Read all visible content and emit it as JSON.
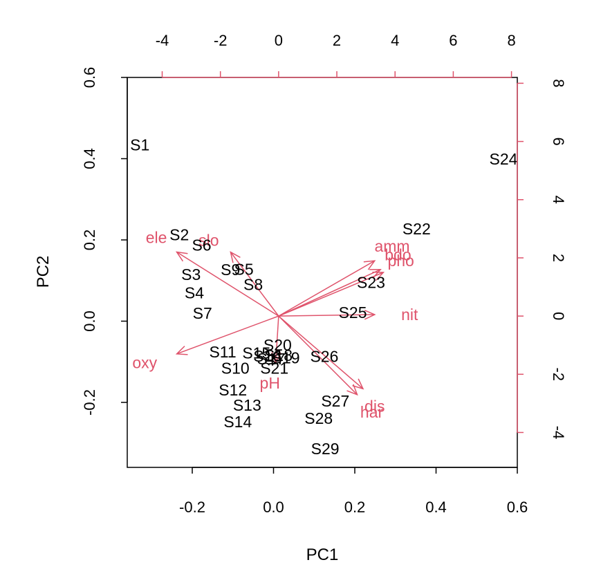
{
  "chart_data": {
    "type": "scatter",
    "subtype": "biplot",
    "title": "",
    "xlabel": "PC1",
    "ylabel": "PC2",
    "xlim": [
      -0.36,
      0.6
    ],
    "ylim": [
      -0.36,
      0.6
    ],
    "xticks": [
      "-0.2",
      "0.0",
      "0.2",
      "0.4",
      "0.6"
    ],
    "xtick_values": [
      -0.2,
      0.0,
      0.2,
      0.4,
      0.6
    ],
    "yticks": [
      "-0.2",
      "0.0",
      "0.2",
      "0.4",
      "0.6"
    ],
    "ytick_values": [
      -0.2,
      0.0,
      0.2,
      0.4,
      0.6
    ],
    "top_axis": {
      "lim": [
        -5.2,
        8.2
      ],
      "ticks": [
        "-4",
        "-2",
        "0",
        "2",
        "4",
        "6",
        "8"
      ],
      "tick_values": [
        -4,
        -2,
        0,
        2,
        4,
        6,
        8
      ]
    },
    "right_axis": {
      "lim": [
        -5.2,
        8.2
      ],
      "ticks": [
        "-4",
        "-2",
        "0",
        "2",
        "4",
        "6",
        "8"
      ],
      "tick_values": [
        -4,
        -2,
        0,
        2,
        4,
        6,
        8
      ]
    },
    "grid": false,
    "colors": {
      "points": "#000000",
      "loadings": "#DF536B",
      "axes": "#000000"
    },
    "observations": [
      {
        "label": "S1",
        "x": -0.329,
        "y": 0.434
      },
      {
        "label": "S2",
        "x": -0.232,
        "y": 0.213
      },
      {
        "label": "S3",
        "x": -0.203,
        "y": 0.115
      },
      {
        "label": "S4",
        "x": -0.195,
        "y": 0.07
      },
      {
        "label": "S5",
        "x": -0.073,
        "y": 0.128
      },
      {
        "label": "S6",
        "x": -0.177,
        "y": 0.187
      },
      {
        "label": "S7",
        "x": -0.175,
        "y": 0.02
      },
      {
        "label": "S8",
        "x": -0.05,
        "y": 0.09
      },
      {
        "label": "S9",
        "x": -0.106,
        "y": 0.127
      },
      {
        "label": "S10",
        "x": -0.094,
        "y": -0.116
      },
      {
        "label": "S11",
        "x": -0.125,
        "y": -0.076
      },
      {
        "label": "S12",
        "x": -0.1,
        "y": -0.169
      },
      {
        "label": "S13",
        "x": -0.065,
        "y": -0.207
      },
      {
        "label": "S14",
        "x": -0.088,
        "y": -0.248
      },
      {
        "label": "S15",
        "x": -0.042,
        "y": -0.078
      },
      {
        "label": "S16",
        "x": -0.015,
        "y": -0.086
      },
      {
        "label": "S17",
        "x": -0.006,
        "y": -0.093
      },
      {
        "label": "S18",
        "x": 0.012,
        "y": -0.084
      },
      {
        "label": "S19",
        "x": 0.03,
        "y": -0.09
      },
      {
        "label": "S20",
        "x": 0.01,
        "y": -0.059
      },
      {
        "label": "S21",
        "x": 0.002,
        "y": -0.116
      },
      {
        "label": "S22",
        "x": 0.352,
        "y": 0.227
      },
      {
        "label": "S23",
        "x": 0.24,
        "y": 0.095
      },
      {
        "label": "S24",
        "x": 0.566,
        "y": 0.399
      },
      {
        "label": "S25",
        "x": 0.195,
        "y": 0.021
      },
      {
        "label": "S26",
        "x": 0.125,
        "y": -0.087
      },
      {
        "label": "S27",
        "x": 0.152,
        "y": -0.197
      },
      {
        "label": "S28",
        "x": 0.111,
        "y": -0.239
      },
      {
        "label": "S29",
        "x": 0.127,
        "y": -0.314
      }
    ],
    "loadings": [
      {
        "label": "ele",
        "x": -3.5,
        "y": 2.2,
        "label_x": -4.2,
        "label_y": 2.7
      },
      {
        "label": "slo",
        "x": -1.65,
        "y": 2.2,
        "label_x": -2.4,
        "label_y": 2.6
      },
      {
        "label": "amm",
        "x": 3.3,
        "y": 1.9,
        "label_x": 3.9,
        "label_y": 2.4
      },
      {
        "label": "bdo",
        "x": 3.5,
        "y": 1.6,
        "label_x": 4.1,
        "label_y": 2.1
      },
      {
        "label": "pho",
        "x": 3.6,
        "y": 1.5,
        "label_x": 4.2,
        "label_y": 1.9
      },
      {
        "label": "nit",
        "x": 3.3,
        "y": 0.05,
        "label_x": 4.5,
        "label_y": 0.05
      },
      {
        "label": "dis",
        "x": 2.7,
        "y": -2.7,
        "label_x": 3.3,
        "label_y": -3.1
      },
      {
        "label": "har",
        "x": 2.9,
        "y": -2.5,
        "label_x": 3.2,
        "label_y": -3.3
      },
      {
        "label": "pH",
        "x": -0.1,
        "y": -1.6,
        "label_x": -0.3,
        "label_y": -2.3
      },
      {
        "label": "oxy",
        "x": -3.5,
        "y": -1.3,
        "label_x": -4.6,
        "label_y": -1.6
      }
    ]
  }
}
